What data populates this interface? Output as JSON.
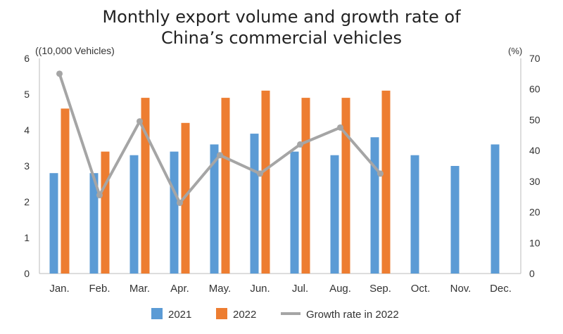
{
  "chart_data": {
    "type": "bar",
    "title_lines": [
      "Monthly export volume and growth rate of",
      "China’s commercial vehicles"
    ],
    "ylabel": "((10,000 Vehicles)",
    "y2label": "(%)",
    "categories": [
      "Jan.",
      "Feb.",
      "Mar.",
      "Apr.",
      "May.",
      "Jun.",
      "Jul.",
      "Aug.",
      "Sep.",
      "Oct.",
      "Nov.",
      "Dec."
    ],
    "ylim": [
      0,
      6
    ],
    "y2lim": [
      0,
      70
    ],
    "yticks": [
      "0",
      "1",
      "2",
      "3",
      "4",
      "5",
      "6"
    ],
    "y2ticks": [
      "0",
      "10",
      "20",
      "30",
      "40",
      "50",
      "60",
      "70"
    ],
    "grid": false,
    "legend_position": "bottom",
    "series": [
      {
        "name": "2021",
        "type": "bar",
        "axis": "left",
        "color": "#5B9BD5",
        "values": [
          2.8,
          2.8,
          3.3,
          3.4,
          3.6,
          3.9,
          3.4,
          3.3,
          3.8,
          3.3,
          3.0,
          3.6
        ]
      },
      {
        "name": "2022",
        "type": "bar",
        "axis": "left",
        "color": "#ED7D31",
        "values": [
          4.6,
          3.4,
          4.9,
          4.2,
          4.9,
          5.1,
          4.9,
          4.9,
          5.1,
          null,
          null,
          null
        ]
      },
      {
        "name": "Growth rate in 2022",
        "type": "line",
        "axis": "right",
        "color": "#A5A5A5",
        "values": [
          65,
          25.5,
          49.5,
          23,
          38.5,
          32.5,
          42,
          47.5,
          32.5,
          null,
          null,
          null
        ]
      }
    ]
  }
}
